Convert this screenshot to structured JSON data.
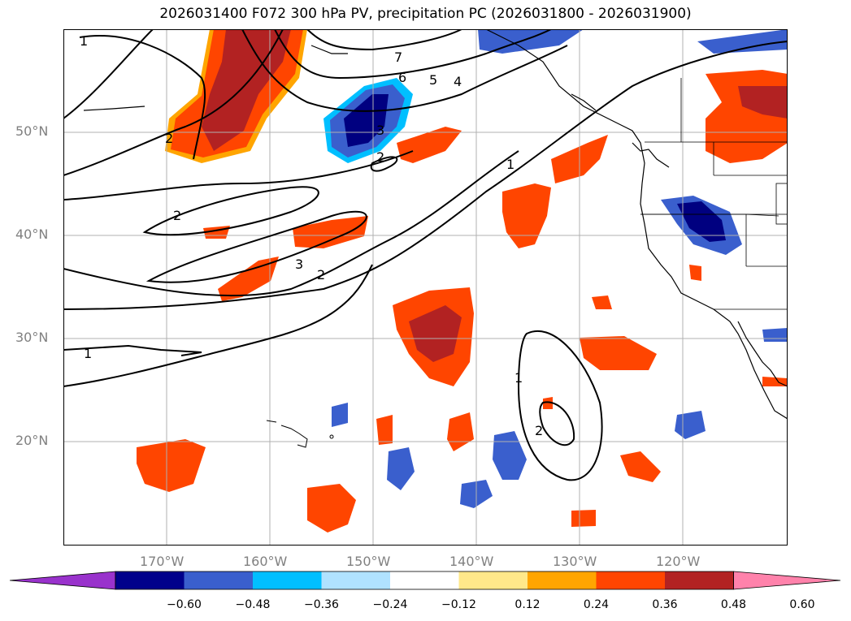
{
  "title": "2026031400 F072 300 hPa PV, precipitation PC (2026031800 - 2026031900)",
  "map": {
    "lat_labels": [
      "50°N",
      "40°N",
      "30°N",
      "20°N"
    ],
    "lon_labels": [
      "170°W",
      "160°W",
      "150°W",
      "140°W",
      "130°W",
      "120°W"
    ],
    "contour_labels": [
      "1",
      "2",
      "2",
      "3",
      "2",
      "1",
      "7",
      "6",
      "5",
      "4",
      "3",
      "2",
      "1",
      "1",
      "2"
    ],
    "colors": {
      "grid": "#b0b0b0",
      "coast": "#000000",
      "pos1": "#ffe88a",
      "pos2": "#ffa500",
      "pos3": "#ff4500",
      "pos4": "#b22222",
      "neg1": "#87cefa",
      "neg2": "#00bfff",
      "neg3": "#3a5fcd",
      "neg4": "#000080"
    }
  },
  "colorbar": {
    "ticks": [
      "−0.60",
      "−0.48",
      "−0.36",
      "−0.24",
      "−0.12",
      "0.12",
      "0.24",
      "0.36",
      "0.48",
      "0.60"
    ],
    "colors": [
      "#9932cc",
      "#00008b",
      "#3a5fcd",
      "#00bfff",
      "#b0e2ff",
      "#ffffff",
      "#ffe88a",
      "#ffa500",
      "#ff4500",
      "#b22222",
      "#ff82ab"
    ]
  }
}
